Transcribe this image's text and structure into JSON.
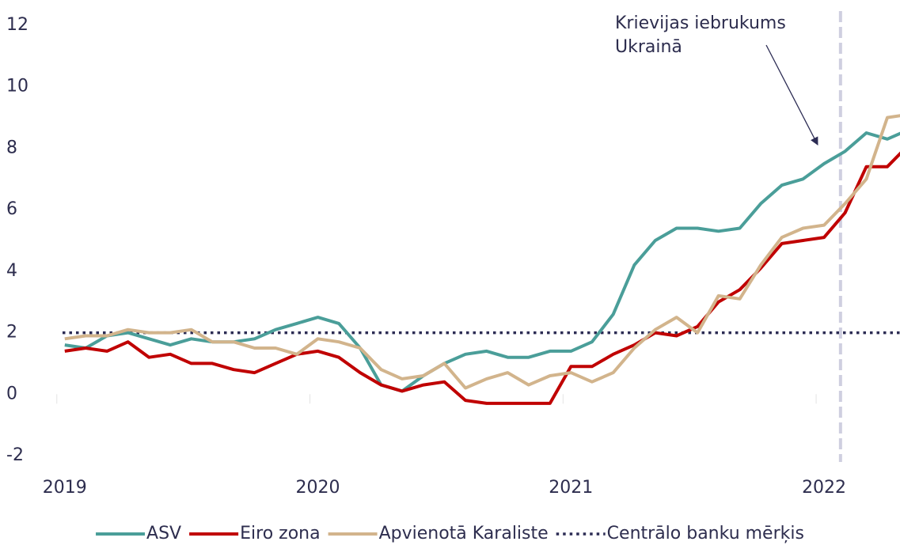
{
  "chart_data": {
    "type": "line",
    "x": [
      2019.0,
      2019.083,
      2019.167,
      2019.25,
      2019.333,
      2019.417,
      2019.5,
      2019.583,
      2019.667,
      2019.75,
      2019.833,
      2019.917,
      2020.0,
      2020.083,
      2020.167,
      2020.25,
      2020.333,
      2020.417,
      2020.5,
      2020.583,
      2020.667,
      2020.75,
      2020.833,
      2020.917,
      2021.0,
      2021.083,
      2021.167,
      2021.25,
      2021.333,
      2021.417,
      2021.5,
      2021.583,
      2021.667,
      2021.75,
      2021.833,
      2021.917,
      2022.0,
      2022.083,
      2022.167,
      2022.25,
      2022.333
    ],
    "series": [
      {
        "name": "ASV",
        "color": "#4a9e99",
        "values": [
          1.6,
          1.5,
          1.9,
          2.0,
          1.8,
          1.6,
          1.8,
          1.7,
          1.7,
          1.8,
          2.1,
          2.3,
          2.5,
          2.3,
          1.5,
          0.3,
          0.1,
          0.6,
          1.0,
          1.3,
          1.4,
          1.2,
          1.2,
          1.4,
          1.4,
          1.7,
          2.6,
          4.2,
          5.0,
          5.4,
          5.4,
          5.3,
          5.4,
          6.2,
          6.8,
          7.0,
          7.5,
          7.9,
          8.5,
          8.3,
          8.6
        ]
      },
      {
        "name": "Eiro zona",
        "color": "#c00000",
        "values": [
          1.4,
          1.5,
          1.4,
          1.7,
          1.2,
          1.3,
          1.0,
          1.0,
          0.8,
          0.7,
          1.0,
          1.3,
          1.4,
          1.2,
          0.7,
          0.3,
          0.1,
          0.3,
          0.4,
          -0.2,
          -0.3,
          -0.3,
          -0.3,
          -0.3,
          0.9,
          0.9,
          1.3,
          1.6,
          2.0,
          1.9,
          2.2,
          3.0,
          3.4,
          4.1,
          4.9,
          5.0,
          5.1,
          5.9,
          7.4,
          7.4,
          8.1
        ]
      },
      {
        "name": "Apvienotā Karaliste",
        "color": "#d2b48c",
        "values": [
          1.8,
          1.9,
          1.9,
          2.1,
          2.0,
          2.0,
          2.1,
          1.7,
          1.7,
          1.5,
          1.5,
          1.3,
          1.8,
          1.7,
          1.5,
          0.8,
          0.5,
          0.6,
          1.0,
          0.2,
          0.5,
          0.7,
          0.3,
          0.6,
          0.7,
          0.4,
          0.7,
          1.5,
          2.1,
          2.5,
          2.0,
          3.2,
          3.1,
          4.2,
          5.1,
          5.4,
          5.5,
          6.2,
          7.0,
          9.0,
          9.1
        ]
      }
    ],
    "target": {
      "name": "Centrālo banku mērķis",
      "color": "#2c2c54",
      "value": 2
    },
    "annotation": {
      "text": [
        "Krievijas iebrukums",
        "Ukrainā"
      ],
      "x": 2022.065
    },
    "xlim": [
      2018.96,
      2022.3
    ],
    "xticks": [
      2019,
      2020,
      2021,
      2022
    ],
    "ylim": [
      -2,
      12
    ],
    "yticks": [
      -2,
      0,
      2,
      4,
      6,
      8,
      10,
      12
    ],
    "legend": "bottom"
  }
}
